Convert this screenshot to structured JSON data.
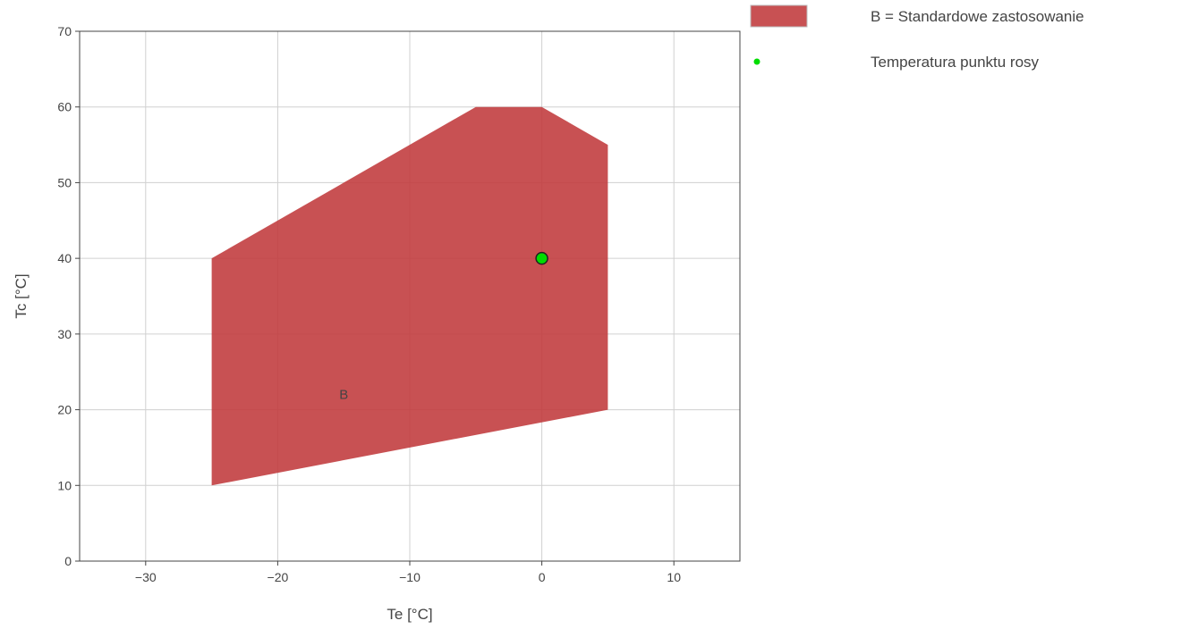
{
  "chart_data": {
    "type": "area",
    "title": "",
    "xlabel": "Te [°C]",
    "ylabel": "Tc [°C]",
    "xlim": [
      -35,
      15
    ],
    "ylim": [
      0,
      70
    ],
    "x_ticks": [
      -30,
      -20,
      -10,
      0,
      10
    ],
    "x_tick_labels": [
      "−30",
      "−20",
      "−10",
      "0",
      "10"
    ],
    "y_ticks": [
      0,
      10,
      20,
      30,
      40,
      50,
      60,
      70
    ],
    "y_tick_labels": [
      "0",
      "10",
      "20",
      "30",
      "40",
      "50",
      "60",
      "70"
    ],
    "grid": true,
    "legend_position": "top-right, outside plot",
    "series": [
      {
        "name": "B = Standardowe zastosowanie",
        "type": "area",
        "label": "B",
        "label_position": [
          -15,
          22
        ],
        "color": "#c0393b",
        "points": [
          {
            "x": -25,
            "y": 10
          },
          {
            "x": -25,
            "y": 40
          },
          {
            "x": -5,
            "y": 60
          },
          {
            "x": 0,
            "y": 60
          },
          {
            "x": 5,
            "y": 55
          },
          {
            "x": 5,
            "y": 20
          }
        ]
      },
      {
        "name": "Temperatura punktu rosy",
        "type": "scatter",
        "color": "#00dd00",
        "points": [
          {
            "x": 0,
            "y": 40
          }
        ]
      }
    ]
  }
}
